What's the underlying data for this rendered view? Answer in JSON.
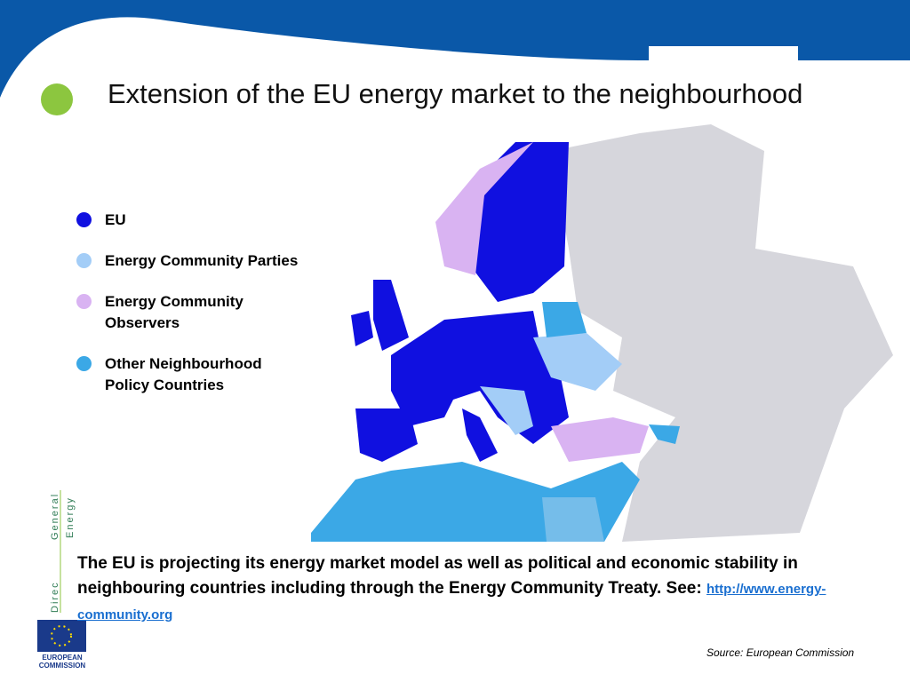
{
  "header": {
    "title": "Extension of the EU energy market to the neighbourhood"
  },
  "legend": [
    {
      "label": "EU",
      "color": "#1010e0"
    },
    {
      "label": "Energy Community Parties",
      "color": "#a3cdf7"
    },
    {
      "label": "Energy Community Observers",
      "color": "#d9b3f2"
    },
    {
      "label": "Other Neighbourhood Policy Countries",
      "color": "#3ba8e6"
    }
  ],
  "body": {
    "text": "The EU is projecting its energy market model as well as political and economic stability in neighbouring countries including through the Energy Community Treaty. See:",
    "link": "http://www.energy-community.org"
  },
  "source": "Source: European Commission",
  "side": {
    "line1": "General",
    "line2": "Energy",
    "line3": "Direc"
  },
  "logo": {
    "line1": "EUROPEAN",
    "line2": "COMMISSION"
  }
}
